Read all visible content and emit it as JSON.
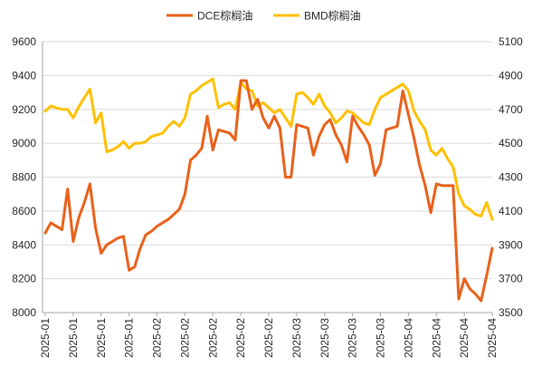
{
  "chart_data": {
    "type": "line",
    "title": "",
    "xlabel": "",
    "ylabel": "",
    "grid": true,
    "legend": {
      "position": "top"
    },
    "x_tick_labels": [
      "2025-01",
      "2025-01",
      "2025-01",
      "2025-01",
      "2025-02",
      "2025-02",
      "2025-02",
      "2025-02",
      "2025-02",
      "2025-03",
      "2025-03",
      "2025-03",
      "2025-03",
      "2025-04",
      "2025-04",
      "2025-04",
      "2025-04"
    ],
    "y_left": {
      "ylim": [
        8000,
        9600
      ],
      "ticks": [
        8000,
        8200,
        8400,
        8600,
        8800,
        9000,
        9200,
        9400,
        9600
      ]
    },
    "y_right": {
      "ylim": [
        3500,
        5100
      ],
      "ticks": [
        3500,
        3700,
        3900,
        4100,
        4300,
        4500,
        4700,
        4900,
        5100
      ]
    },
    "series": [
      {
        "name": "DCE棕榈油",
        "axis": "left",
        "color": "#E8611A",
        "values": [
          8470,
          8530,
          8510,
          8490,
          8730,
          8420,
          8560,
          8650,
          8760,
          8500,
          8350,
          8400,
          8420,
          8440,
          8450,
          8250,
          8270,
          8380,
          8460,
          8480,
          8510,
          8530,
          8550,
          8580,
          8610,
          8700,
          8900,
          8930,
          8970,
          9160,
          8960,
          9080,
          9070,
          9060,
          9020,
          9370,
          9370,
          9200,
          9260,
          9150,
          9090,
          9160,
          9090,
          8800,
          8800,
          9110,
          9100,
          9090,
          8930,
          9040,
          9110,
          9140,
          9050,
          8990,
          8890,
          9160,
          9100,
          9050,
          8990,
          8810,
          8880,
          9080,
          9090,
          9100,
          9310,
          9170,
          9030,
          8870,
          8750,
          8590,
          8760,
          8750,
          8750,
          8750,
          8080,
          8200,
          8140,
          8110,
          8070,
          8220,
          8380
        ]
      },
      {
        "name": "BMD棕榈油",
        "axis": "right",
        "color": "#FFC000",
        "values": [
          4690,
          4720,
          4710,
          4700,
          4700,
          4650,
          4715,
          4770,
          4820,
          4620,
          4680,
          4450,
          4460,
          4480,
          4510,
          4470,
          4500,
          4500,
          4510,
          4540,
          4550,
          4560,
          4600,
          4630,
          4600,
          4650,
          4790,
          4810,
          4840,
          4860,
          4880,
          4710,
          4730,
          4740,
          4700,
          4860,
          4820,
          4810,
          4720,
          4740,
          4710,
          4680,
          4700,
          4650,
          4600,
          4790,
          4800,
          4770,
          4730,
          4790,
          4720,
          4680,
          4620,
          4650,
          4690,
          4680,
          4650,
          4620,
          4610,
          4700,
          4770,
          4790,
          4810,
          4830,
          4850,
          4810,
          4690,
          4630,
          4580,
          4460,
          4430,
          4470,
          4410,
          4360,
          4200,
          4130,
          4110,
          4080,
          4070,
          4150,
          4050
        ]
      }
    ]
  }
}
